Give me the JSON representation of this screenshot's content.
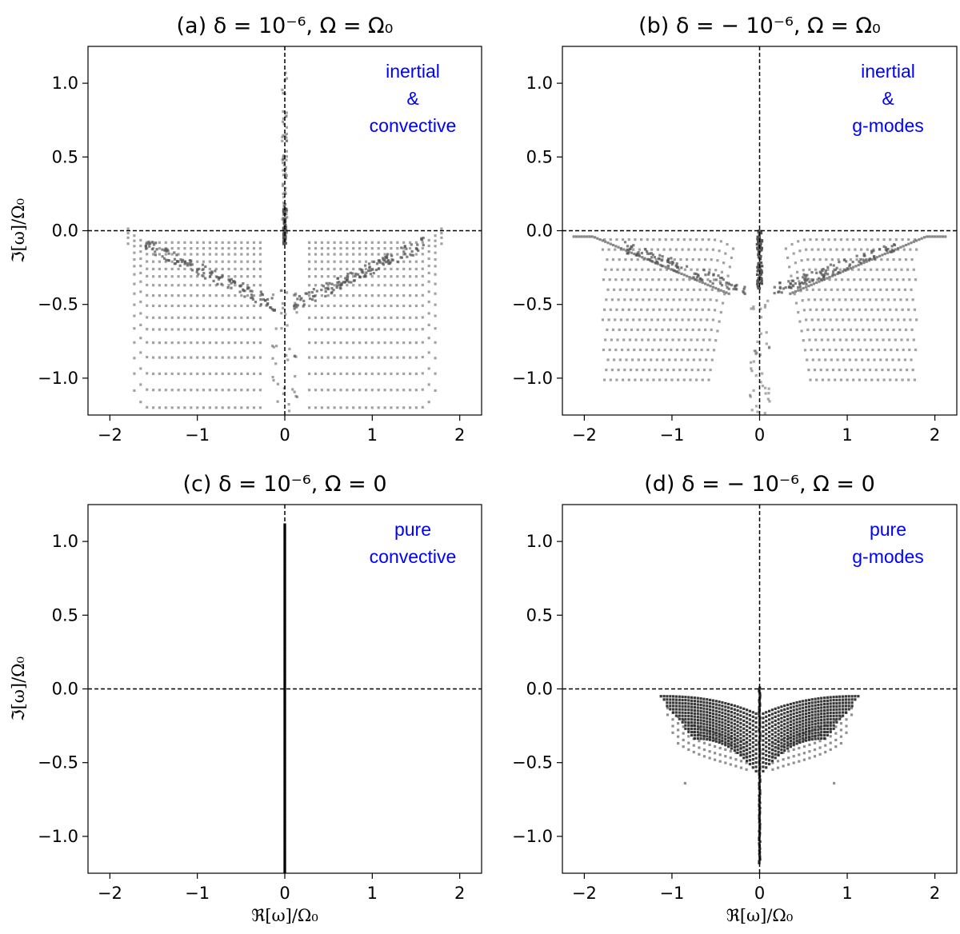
{
  "chart_data": [
    {
      "id": "a",
      "type": "scatter",
      "title": "(a) δ = 10⁻⁶, Ω = Ω₀",
      "xlabel": "",
      "ylabel": "ℑ[ω]/Ω₀",
      "xlim": [
        -2.25,
        2.25
      ],
      "ylim": [
        -1.25,
        1.25
      ],
      "xticks": [
        -2,
        -1,
        0,
        1,
        2
      ],
      "yticks": [
        -1.0,
        -0.5,
        0.0,
        0.5,
        1.0
      ],
      "xtick_labels": [
        "−2",
        "−1",
        "0",
        "1",
        "2"
      ],
      "ytick_labels": [
        "−1.0",
        "−0.5",
        "0.0",
        "0.5",
        "1.0"
      ],
      "reference_lines": {
        "x": 0,
        "y": 0
      },
      "annotation": [
        "inertial",
        "&",
        "convective"
      ],
      "annotation_color": "#0000ff",
      "point_color": "#555555",
      "pattern": "rotating-convective",
      "envelope_width": 1.8,
      "rows": [
        -0.08,
        -0.12,
        -0.16,
        -0.21,
        -0.26,
        -0.31,
        -0.37,
        -0.44,
        -0.51,
        -0.59,
        -0.67,
        -0.76,
        -0.86,
        -0.97,
        -1.08,
        -1.2
      ],
      "spike_top": 1.07
    },
    {
      "id": "b",
      "type": "scatter",
      "title": "(b) δ = − 10⁻⁶, Ω = Ω₀",
      "xlabel": "",
      "ylabel": "",
      "xlim": [
        -2.25,
        2.25
      ],
      "ylim": [
        -1.25,
        1.25
      ],
      "xticks": [
        -2,
        -1,
        0,
        1,
        2
      ],
      "yticks": [
        -1.0,
        -0.5,
        0.0,
        0.5,
        1.0
      ],
      "xtick_labels": [
        "−2",
        "−1",
        "0",
        "1",
        "2"
      ],
      "ytick_labels": [
        "−1.0",
        "−0.5",
        "0.0",
        "0.5",
        "1.0"
      ],
      "reference_lines": {
        "x": 0,
        "y": 0
      },
      "annotation": [
        "inertial",
        "&",
        "g-modes"
      ],
      "annotation_color": "#0000ff",
      "point_color": "#555555",
      "pattern": "rotating-stable",
      "envelope_width": 1.8
    },
    {
      "id": "c",
      "type": "scatter",
      "title": "(c) δ = 10⁻⁶, Ω = 0",
      "xlabel": "ℜ[ω]/Ω₀",
      "ylabel": "ℑ[ω]/Ω₀",
      "xlim": [
        -2.25,
        2.25
      ],
      "ylim": [
        -1.25,
        1.25
      ],
      "xticks": [
        -2,
        -1,
        0,
        1,
        2
      ],
      "yticks": [
        -1.0,
        -0.5,
        0.0,
        0.5,
        1.0
      ],
      "xtick_labels": [
        "−2",
        "−1",
        "0",
        "1",
        "2"
      ],
      "ytick_labels": [
        "−1.0",
        "−0.5",
        "0.0",
        "0.5",
        "1.0"
      ],
      "reference_lines": {
        "x": 0,
        "y": 0
      },
      "annotation": [
        "pure",
        "convective"
      ],
      "annotation_color": "#0000ff",
      "point_color": "#000000",
      "pattern": "pure-convective",
      "spike_range": [
        -1.25,
        1.12
      ]
    },
    {
      "id": "d",
      "type": "scatter",
      "title": "(d) δ = − 10⁻⁶, Ω = 0",
      "xlabel": "ℜ[ω]/Ω₀",
      "ylabel": "",
      "xlim": [
        -2.25,
        2.25
      ],
      "ylim": [
        -1.25,
        1.25
      ],
      "xticks": [
        -2,
        -1,
        0,
        1,
        2
      ],
      "yticks": [
        -1.0,
        -0.5,
        0.0,
        0.5,
        1.0
      ],
      "xtick_labels": [
        "−2",
        "−1",
        "0",
        "1",
        "2"
      ],
      "ytick_labels": [
        "−1.0",
        "−0.5",
        "0.0",
        "0.5",
        "1.0"
      ],
      "reference_lines": {
        "x": 0,
        "y": 0
      },
      "annotation": [
        "pure",
        "g-modes"
      ],
      "annotation_color": "#0000ff",
      "point_color": "#222222",
      "pattern": "pure-gmodes",
      "envelope_width": 1.15,
      "outliers": [
        [
          -0.85,
          -0.64
        ],
        [
          0.85,
          -0.64
        ]
      ]
    }
  ]
}
